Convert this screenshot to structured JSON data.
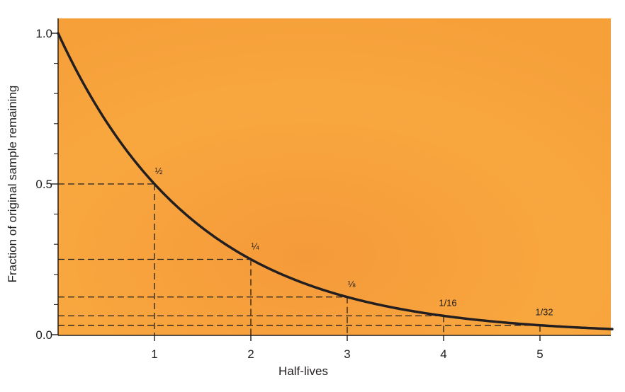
{
  "chart_data": {
    "type": "line",
    "title": "",
    "xlabel": "Half-lives",
    "ylabel": "Fraction of original sample remaining",
    "xlim": [
      0,
      5.75
    ],
    "ylim": [
      0,
      1.05
    ],
    "x_ticks": [
      1,
      2,
      3,
      4,
      5
    ],
    "x_tick_labels": [
      "1",
      "2",
      "3",
      "4",
      "5"
    ],
    "y_ticks": [
      0.0,
      0.5,
      1.0
    ],
    "y_tick_labels": [
      "0.0",
      "0.5",
      "1.0"
    ],
    "y_minor_ticks": [
      0.1,
      0.2,
      0.3,
      0.4,
      0.6,
      0.7,
      0.8,
      0.9
    ],
    "curve": "exponential decay y = 0.5^x",
    "series": [
      {
        "x": [
          0,
          0.25,
          0.5,
          0.75,
          1,
          1.25,
          1.5,
          1.75,
          2,
          2.25,
          2.5,
          2.75,
          3,
          3.25,
          3.5,
          3.75,
          4,
          4.25,
          4.5,
          4.75,
          5,
          5.25,
          5.5,
          5.75
        ],
        "y": [
          1.0,
          0.841,
          0.707,
          0.595,
          0.5,
          0.42,
          0.354,
          0.297,
          0.25,
          0.21,
          0.177,
          0.149,
          0.125,
          0.105,
          0.088,
          0.074,
          0.0625,
          0.053,
          0.044,
          0.037,
          0.03125,
          0.026,
          0.022,
          0.019
        ]
      }
    ],
    "annotations": [
      {
        "x": 1,
        "y": 0.5,
        "label": "½"
      },
      {
        "x": 2,
        "y": 0.25,
        "label": "¼"
      },
      {
        "x": 3,
        "y": 0.125,
        "label": "⅛"
      },
      {
        "x": 4,
        "y": 0.0625,
        "label": "1/16"
      },
      {
        "x": 5,
        "y": 0.03125,
        "label": "1/32"
      }
    ],
    "grid": false,
    "legend": "none",
    "colors": {
      "background": "#f8a43c",
      "curve": "#231f20",
      "guides": "#231f20"
    }
  }
}
